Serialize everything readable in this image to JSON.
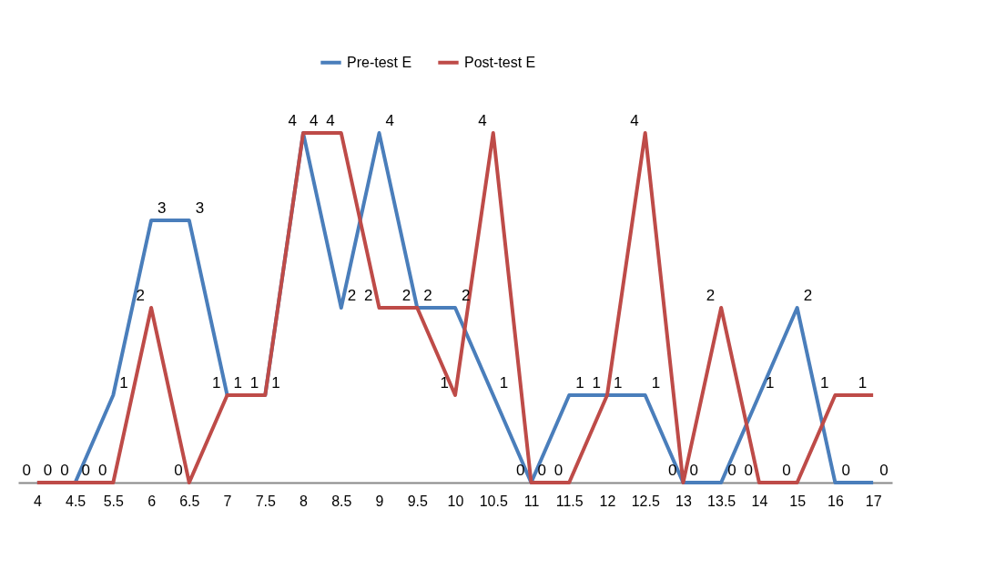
{
  "chart_data": {
    "type": "line",
    "categories": [
      "4",
      "4.5",
      "5.5",
      "6",
      "6.5",
      "7",
      "7.5",
      "8",
      "8.5",
      "9",
      "9.5",
      "10",
      "10.5",
      "11",
      "11.5",
      "12",
      "12.5",
      "13",
      "13.5",
      "14",
      "15",
      "16",
      "17"
    ],
    "series": [
      {
        "name": "Pre-test E",
        "color": "#4a7ebb",
        "values": [
          0,
          0,
          1,
          3,
          3,
          1,
          1,
          4,
          2,
          4,
          2,
          2,
          1,
          0,
          1,
          1,
          1,
          0,
          0,
          1,
          2,
          0,
          0
        ]
      },
      {
        "name": "Post-test E",
        "color": "#be4b48",
        "values": [
          0,
          0,
          0,
          2,
          0,
          1,
          1,
          4,
          4,
          2,
          2,
          1,
          4,
          0,
          0,
          1,
          4,
          0,
          2,
          0,
          0,
          1,
          1
        ]
      }
    ],
    "data_labels": true,
    "legend": "top",
    "grid": false,
    "marker": "none",
    "line_style": "solid",
    "tick_labels": "x"
  }
}
